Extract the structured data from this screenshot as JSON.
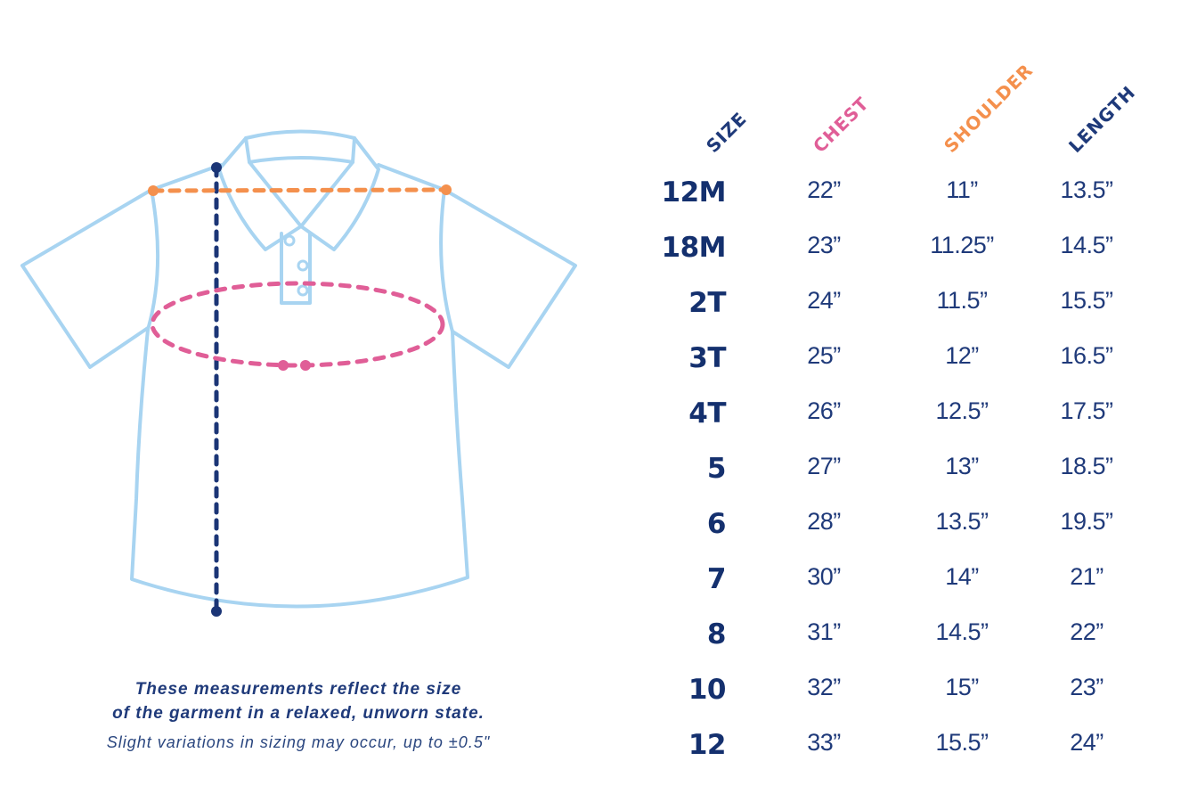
{
  "headers": {
    "size": "SIZE",
    "chest": "CHEST",
    "shoulder": "SHOULDER",
    "length": "LENGTH"
  },
  "colors": {
    "navy": "#1f3a7a",
    "chest": "#e05e97",
    "shoulder": "#f4904d",
    "shirt_outline": "#a8d4f1",
    "length_line": "#1b3576"
  },
  "rows": [
    {
      "size": "12M",
      "chest": "22”",
      "shoulder": "11”",
      "length": "13.5”"
    },
    {
      "size": "18M",
      "chest": "23”",
      "shoulder": "11.25”",
      "length": "14.5”"
    },
    {
      "size": "2T",
      "chest": "24”",
      "shoulder": "11.5”",
      "length": "15.5”"
    },
    {
      "size": "3T",
      "chest": "25”",
      "shoulder": "12”",
      "length": "16.5”"
    },
    {
      "size": "4T",
      "chest": "26”",
      "shoulder": "12.5”",
      "length": "17.5”"
    },
    {
      "size": "5",
      "chest": "27”",
      "shoulder": "13”",
      "length": "18.5”"
    },
    {
      "size": "6",
      "chest": "28”",
      "shoulder": "13.5”",
      "length": "19.5”"
    },
    {
      "size": "7",
      "chest": "30”",
      "shoulder": "14”",
      "length": "21”"
    },
    {
      "size": "8",
      "chest": "31”",
      "shoulder": "14.5”",
      "length": "22”"
    },
    {
      "size": "10",
      "chest": "32”",
      "shoulder": "15”",
      "length": "23”"
    },
    {
      "size": "12",
      "chest": "33”",
      "shoulder": "15.5”",
      "length": "24”"
    }
  ],
  "caption": {
    "line1": "These measurements reflect the size",
    "line2": "of the garment in a relaxed, unworn state.",
    "note": "Slight variations in sizing may occur, up to ±0.5\""
  }
}
